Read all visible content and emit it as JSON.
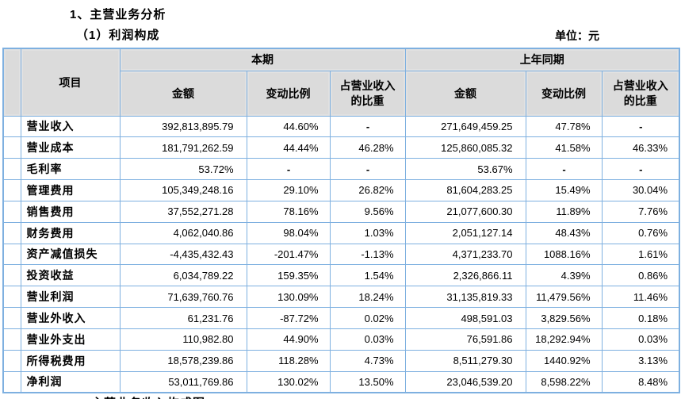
{
  "page": {
    "heading1": "1、主营业务分析",
    "heading2": "（1）利润构成",
    "unit_label": "单位：元",
    "truncated_line": "主营业务收入构成图"
  },
  "colors": {
    "table_border": "#7EB0E0",
    "header_bg": "#DBDBDB",
    "text": "#000000"
  },
  "table": {
    "header": {
      "item": "项目",
      "current_period": "本期",
      "prior_period": "上年同期",
      "amount": "金额",
      "change_ratio": "变动比例",
      "revenue_share_line1": "占营业收入",
      "revenue_share_line2": "的比重"
    },
    "rows": [
      {
        "label": "营业收入",
        "cells": [
          "392,813,895.79",
          "44.60%",
          "-",
          "271,649,459.25",
          "47.78%",
          "-"
        ]
      },
      {
        "label": "营业成本",
        "cells": [
          "181,791,262.59",
          "44.44%",
          "46.28%",
          "125,860,085.32",
          "41.58%",
          "46.33%"
        ]
      },
      {
        "label": "毛利率",
        "cells": [
          "53.72%",
          "-",
          "-",
          "53.67%",
          "-",
          "-"
        ]
      },
      {
        "label": "管理费用",
        "cells": [
          "105,349,248.16",
          "29.10%",
          "26.82%",
          "81,604,283.25",
          "15.49%",
          "30.04%"
        ]
      },
      {
        "label": "销售费用",
        "cells": [
          "37,552,271.28",
          "78.16%",
          "9.56%",
          "21,077,600.30",
          "11.89%",
          "7.76%"
        ]
      },
      {
        "label": "财务费用",
        "cells": [
          "4,062,040.86",
          "98.04%",
          "1.03%",
          "2,051,127.14",
          "48.43%",
          "0.76%"
        ]
      },
      {
        "label": "资产减值损失",
        "cells": [
          "-4,435,432.43",
          "-201.47%",
          "-1.13%",
          "4,371,233.70",
          "1088.16%",
          "1.61%"
        ]
      },
      {
        "label": "投资收益",
        "cells": [
          "6,034,789.22",
          "159.35%",
          "1.54%",
          "2,326,866.11",
          "4.39%",
          "0.86%"
        ]
      },
      {
        "label": "营业利润",
        "cells": [
          "71,639,760.76",
          "130.09%",
          "18.24%",
          "31,135,819.33",
          "11,479.56%",
          "11.46%"
        ]
      },
      {
        "label": "营业外收入",
        "cells": [
          "61,231.76",
          "-87.72%",
          "0.02%",
          "498,591.03",
          "3,829.56%",
          "0.18%"
        ]
      },
      {
        "label": "营业外支出",
        "cells": [
          "110,982.80",
          "44.90%",
          "0.03%",
          "76,591.86",
          "18,292.94%",
          "0.03%"
        ]
      },
      {
        "label": "所得税费用",
        "cells": [
          "18,578,239.86",
          "118.28%",
          "4.73%",
          "8,511,279.30",
          "1440.92%",
          "3.13%"
        ]
      },
      {
        "label": "净利润",
        "cells": [
          "53,011,769.86",
          "130.02%",
          "13.50%",
          "23,046,539.20",
          "8,598.22%",
          "8.48%"
        ]
      }
    ]
  }
}
